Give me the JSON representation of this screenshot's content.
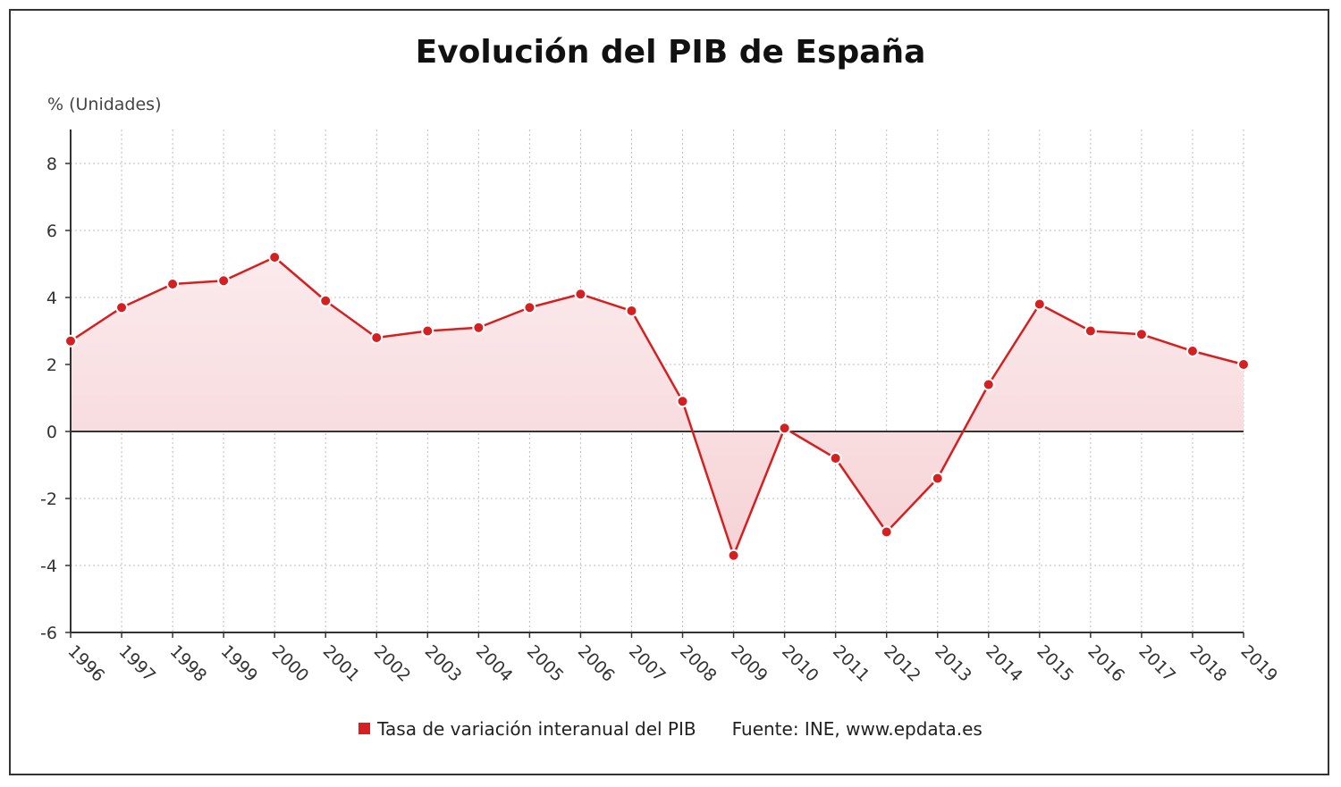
{
  "chart_data": {
    "type": "area",
    "title": "Evolución del PIB de España",
    "ylabel": "% (Unidades)",
    "xlabel": "",
    "ylim": [
      -6,
      9
    ],
    "yticks": [
      8,
      6,
      4,
      2,
      0,
      -2,
      -4,
      -6
    ],
    "grid": true,
    "legend_position": "bottom",
    "categories": [
      "1996",
      "1997",
      "1998",
      "1999",
      "2000",
      "2001",
      "2002",
      "2003",
      "2004",
      "2005",
      "2006",
      "2007",
      "2008",
      "2009",
      "2010",
      "2011",
      "2012",
      "2013",
      "2014",
      "2015",
      "2016",
      "2017",
      "2018",
      "2019"
    ],
    "series": [
      {
        "name": "Tasa de variación interanual del PIB",
        "color": "#d42020",
        "values": [
          2.7,
          3.7,
          4.4,
          4.5,
          5.2,
          3.9,
          2.8,
          3.0,
          3.1,
          3.7,
          4.1,
          3.6,
          0.9,
          -3.7,
          0.1,
          -0.8,
          -3.0,
          -1.4,
          1.4,
          3.8,
          3.0,
          2.9,
          2.4,
          2.0
        ]
      }
    ],
    "source": "Fuente: INE, www.epdata.es"
  }
}
